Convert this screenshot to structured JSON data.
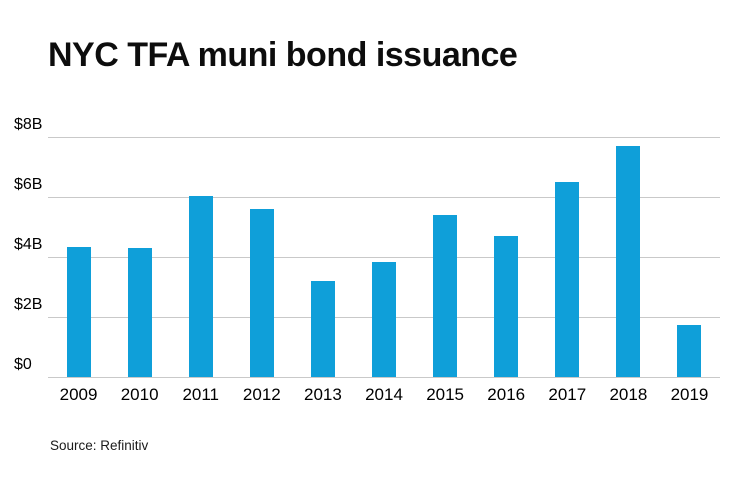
{
  "chart_data": {
    "type": "bar",
    "title": "NYC TFA muni bond issuance",
    "source": "Source: Refinitiv",
    "unit": "billions USD",
    "categories": [
      "2009",
      "2010",
      "2011",
      "2012",
      "2013",
      "2014",
      "2015",
      "2016",
      "2017",
      "2018",
      "2019"
    ],
    "values": [
      4.35,
      4.3,
      6.05,
      5.6,
      3.2,
      3.85,
      5.4,
      4.7,
      6.5,
      7.7,
      1.75
    ],
    "ylim": [
      0,
      8
    ],
    "yticks": [
      {
        "label": "$0",
        "value": 0
      },
      {
        "label": "$2B",
        "value": 2
      },
      {
        "label": "$4B",
        "value": 4
      },
      {
        "label": "$6B",
        "value": 6
      },
      {
        "label": "$8B",
        "value": 8
      }
    ],
    "grid": "horizontal",
    "legend": "none",
    "bar_color": "#0f9fd9",
    "gridline_color": "#c9c9c9",
    "text_color": "#000000"
  }
}
